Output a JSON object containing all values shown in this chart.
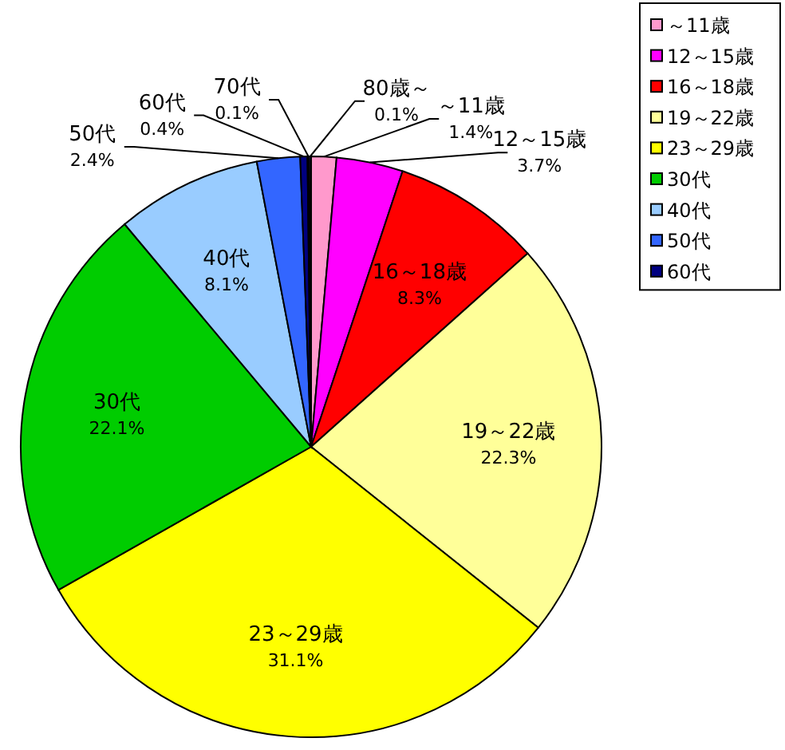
{
  "chart_data": {
    "type": "pie",
    "categories": [
      "～11歳",
      "12～15歳",
      "16～18歳",
      "19～22歳",
      "23～29歳",
      "30代",
      "40代",
      "50代",
      "60代",
      "70代",
      "80歳～"
    ],
    "values": [
      1.4,
      3.7,
      8.3,
      22.3,
      31.1,
      22.1,
      8.1,
      2.4,
      0.4,
      0.1,
      0.1
    ],
    "colors": [
      "#ff99cc",
      "#ff00ff",
      "#ff0000",
      "#ffff99",
      "#ffff00",
      "#00cc00",
      "#99ccff",
      "#3366ff",
      "#000080",
      "#000033",
      "#333399"
    ],
    "value_labels": [
      "1.4%",
      "3.7%",
      "8.3%",
      "22.3%",
      "31.1%",
      "22.1%",
      "8.1%",
      "2.4%",
      "0.4%",
      "0.1%",
      "0.1%"
    ],
    "legend": "top right"
  }
}
